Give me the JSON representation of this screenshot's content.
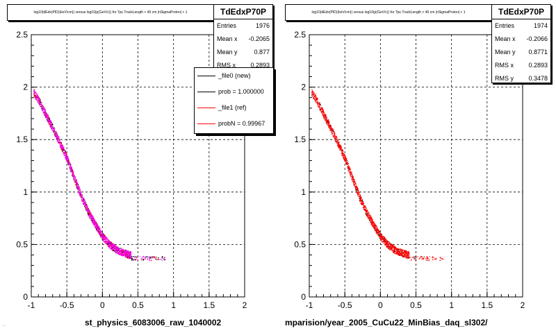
{
  "footer_text": "...",
  "chart_data": [
    {
      "type": "scatter",
      "title": "log10(dEdx(PID)(keV/cm)) versus log10(p(GeV/c)) for Tpc.TrackLength > 40 cm |nSigmaProton| < 1",
      "xlabel": "st_physics_6083006_raw_1040002",
      "ylabel": "",
      "xlim": [
        -1,
        2
      ],
      "ylim": [
        0,
        2.5
      ],
      "xticks": [
        "-1",
        "-0.5",
        "0",
        "0.5",
        "1",
        "1.5",
        "2"
      ],
      "yticks": [
        "0",
        "0.5",
        "1",
        "1.5",
        "2",
        "2.5"
      ],
      "grid": true,
      "colors": {
        "new": "#000000",
        "ref": "#ff0000",
        "overlay": "#ff00ff"
      },
      "series": [
        {
          "name": "_file0 (new)",
          "color": "#000000",
          "curve": [
            [
              -0.97,
              1.95
            ],
            [
              -0.9,
              1.88
            ],
            [
              -0.8,
              1.74
            ],
            [
              -0.7,
              1.61
            ],
            [
              -0.6,
              1.47
            ],
            [
              -0.5,
              1.32
            ],
            [
              -0.4,
              1.14
            ],
            [
              -0.3,
              0.96
            ],
            [
              -0.2,
              0.81
            ],
            [
              -0.1,
              0.69
            ],
            [
              0.0,
              0.58
            ],
            [
              0.1,
              0.5
            ],
            [
              0.2,
              0.45
            ],
            [
              0.3,
              0.42
            ],
            [
              0.4,
              0.4
            ]
          ]
        },
        {
          "name": "_file1 (ref)",
          "color": "#ff0000",
          "curve": [
            [
              -0.97,
              1.95
            ],
            [
              -0.9,
              1.88
            ],
            [
              -0.8,
              1.74
            ],
            [
              -0.7,
              1.61
            ],
            [
              -0.6,
              1.47
            ],
            [
              -0.5,
              1.32
            ],
            [
              -0.4,
              1.14
            ],
            [
              -0.3,
              0.96
            ],
            [
              -0.2,
              0.81
            ],
            [
              -0.1,
              0.69
            ],
            [
              0.0,
              0.58
            ],
            [
              0.1,
              0.5
            ],
            [
              0.2,
              0.45
            ],
            [
              0.3,
              0.42
            ],
            [
              0.4,
              0.4
            ]
          ]
        }
      ],
      "stats": {
        "name": "TdEdxP70P",
        "rows": [
          {
            "label": "Entries",
            "value": "1976"
          },
          {
            "label": "Mean x",
            "value": "-0.2065"
          },
          {
            "label": "Mean y",
            "value": "0.877"
          },
          {
            "label": "RMS x",
            "value": "0.2893"
          }
        ]
      },
      "legend": [
        {
          "label": "_file0 (new)",
          "color": "#000000"
        },
        {
          "label": "prob = 1.000000",
          "color": "#000000"
        },
        {
          "label": "_file1 (ref)",
          "color": "#ff0000"
        },
        {
          "label": "probN = 0.99967",
          "color": "#ff0000"
        }
      ]
    },
    {
      "type": "scatter",
      "title": "log10(dEdx(PID)(keV/cm)) versus log10(p(GeV/c)) for Tpc.TrackLength > 40 cm |nSigmaProton| < 1",
      "xlabel": "mparision/year_2005_CuCu22_MinBias_daq_sl302/",
      "ylabel": "",
      "xlim": [
        -1,
        2
      ],
      "ylim": [
        0,
        2.5
      ],
      "xticks": [
        "-1",
        "-0.5",
        "0",
        "0.5",
        "1",
        "1.5",
        "2"
      ],
      "yticks": [
        "0",
        "0.5",
        "1",
        "1.5",
        "2",
        "2.5"
      ],
      "grid": true,
      "series": [
        {
          "name": "TdEdxP70P",
          "color": "#ff0000",
          "curve": [
            [
              -0.97,
              1.95
            ],
            [
              -0.9,
              1.88
            ],
            [
              -0.8,
              1.74
            ],
            [
              -0.7,
              1.61
            ],
            [
              -0.6,
              1.47
            ],
            [
              -0.5,
              1.32
            ],
            [
              -0.4,
              1.14
            ],
            [
              -0.3,
              0.96
            ],
            [
              -0.2,
              0.81
            ],
            [
              -0.1,
              0.69
            ],
            [
              0.0,
              0.58
            ],
            [
              0.1,
              0.5
            ],
            [
              0.2,
              0.45
            ],
            [
              0.3,
              0.42
            ],
            [
              0.4,
              0.4
            ]
          ]
        }
      ],
      "stats": {
        "name": "TdEdxP70P",
        "rows": [
          {
            "label": "Entries",
            "value": "1974"
          },
          {
            "label": "Mean x",
            "value": "-0.2066"
          },
          {
            "label": "Mean y",
            "value": "0.8771"
          },
          {
            "label": "RMS x",
            "value": "0.2893"
          },
          {
            "label": "RMS y",
            "value": "0.3478"
          }
        ]
      }
    }
  ]
}
